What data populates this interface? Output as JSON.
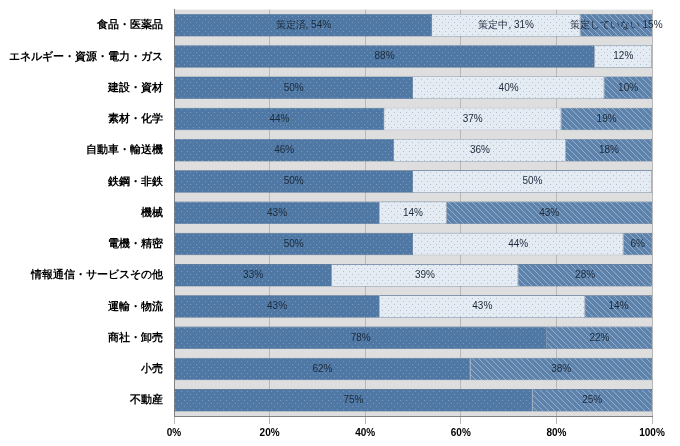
{
  "chart_data": {
    "type": "bar",
    "orientation": "horizontal",
    "stacked": true,
    "data_labels": true,
    "grid": true,
    "categories": [
      "食品・医薬品",
      "エネルギー・資源・電力・ガス",
      "建設・資材",
      "素材・化学",
      "自動車・輸送機",
      "鉄鋼・非鉄",
      "機械",
      "電機・精密",
      "情報通信・サービスその他",
      "運輸・物流",
      "商社・卸売",
      "小売",
      "不動産"
    ],
    "series": [
      {
        "name": "策定済",
        "color": "#4f78a4",
        "values": [
          54,
          88,
          50,
          44,
          46,
          50,
          43,
          50,
          33,
          43,
          78,
          62,
          75
        ],
        "value_labels": [
          "策定済, 54%",
          "88%",
          "50%",
          "44%",
          "46%",
          "50%",
          "43%",
          "50%",
          "33%",
          "43%",
          "78%",
          "62%",
          "75%"
        ]
      },
      {
        "name": "策定中",
        "color": "#e4ebf3",
        "values": [
          31,
          12,
          40,
          37,
          36,
          50,
          14,
          44,
          39,
          43,
          null,
          null,
          null
        ],
        "value_labels": [
          "策定中, 31%",
          "12%",
          "40%",
          "37%",
          "36%",
          "50%",
          "14%",
          "44%",
          "39%",
          "43%",
          null,
          null,
          null
        ]
      },
      {
        "name": "策定していない",
        "color": "#5d83ad",
        "values": [
          15,
          null,
          10,
          19,
          18,
          null,
          43,
          6,
          28,
          14,
          22,
          38,
          25
        ],
        "value_labels": [
          "策定していない 15%",
          null,
          "10%",
          "19%",
          "18%",
          null,
          "43%",
          "6%",
          "28%",
          "14%",
          "22%",
          "38%",
          "25%"
        ]
      }
    ],
    "xlim": [
      0,
      100
    ],
    "xticks": [
      {
        "value": 0,
        "label": "0%"
      },
      {
        "value": 20,
        "label": "20%"
      },
      {
        "value": 40,
        "label": "40%"
      },
      {
        "value": 60,
        "label": "60%"
      },
      {
        "value": 80,
        "label": "80%"
      },
      {
        "value": 100,
        "label": "100%"
      }
    ]
  }
}
